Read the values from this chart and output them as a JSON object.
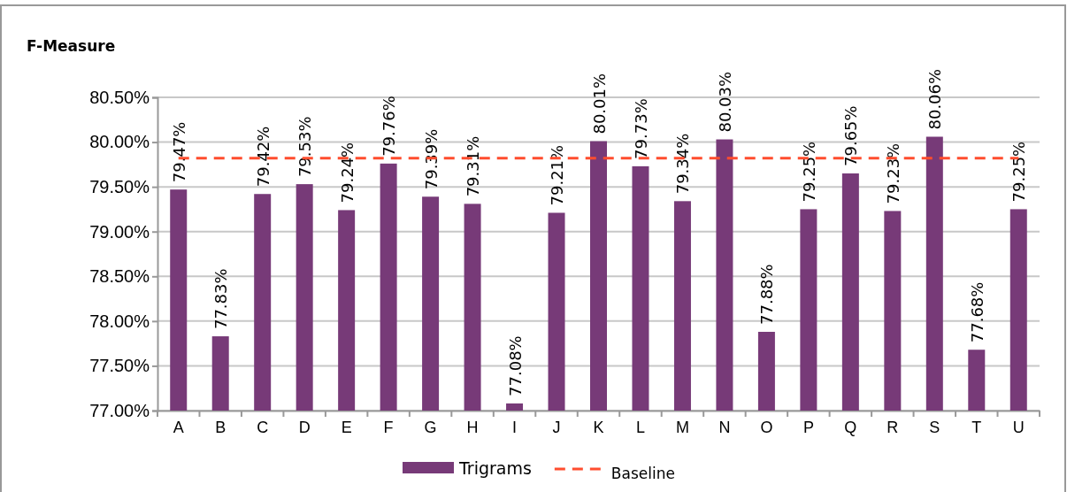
{
  "chart_data": {
    "type": "bar",
    "ylabel": "F-Measure",
    "categories": [
      "A",
      "B",
      "C",
      "D",
      "E",
      "F",
      "G",
      "H",
      "I",
      "J",
      "K",
      "L",
      "M",
      "N",
      "O",
      "P",
      "Q",
      "R",
      "S",
      "T",
      "U"
    ],
    "series": [
      {
        "name": "Trigrams",
        "color": "#773a78",
        "values": [
          79.47,
          77.83,
          79.42,
          79.53,
          79.24,
          79.76,
          79.39,
          79.31,
          77.08,
          79.21,
          80.01,
          79.73,
          79.34,
          80.03,
          77.88,
          79.25,
          79.65,
          79.23,
          80.06,
          77.68,
          79.25
        ],
        "value_labels": [
          "79.47%",
          "77.83%",
          "79.42%",
          "79.53%",
          "79.24%",
          "79.76%",
          "79.39%",
          "79.31%",
          "77.08%",
          "79.21%",
          "80.01%",
          "79.73%",
          "79.34%",
          "80.03%",
          "77.88%",
          "79.25%",
          "79.65%",
          "79.23%",
          "80.06%",
          "77.68%",
          "79.25%"
        ]
      },
      {
        "name": "Baseline",
        "type": "line",
        "color": "#ff4d2e",
        "line_style": "dashed",
        "marker": "none",
        "values": [
          79.82,
          79.82,
          79.82,
          79.82,
          79.82,
          79.82,
          79.82,
          79.82,
          79.82,
          79.82,
          79.82,
          79.82,
          79.82,
          79.82,
          79.82,
          79.82,
          79.82,
          79.82,
          79.82,
          79.82,
          79.82
        ]
      }
    ],
    "ylim": [
      77,
      80.5
    ],
    "yticks": [
      {
        "value": 77,
        "label": "77.00%"
      },
      {
        "value": 77.5,
        "label": "77.50%"
      },
      {
        "value": 78,
        "label": "78.00%"
      },
      {
        "value": 78.5,
        "label": "78.50%"
      },
      {
        "value": 79,
        "label": "79.00%"
      },
      {
        "value": 79.5,
        "label": "79.50%"
      },
      {
        "value": 80,
        "label": "80.00%"
      },
      {
        "value": 80.5,
        "label": "80.50%"
      }
    ],
    "grid": "y",
    "legend": "bottom"
  }
}
